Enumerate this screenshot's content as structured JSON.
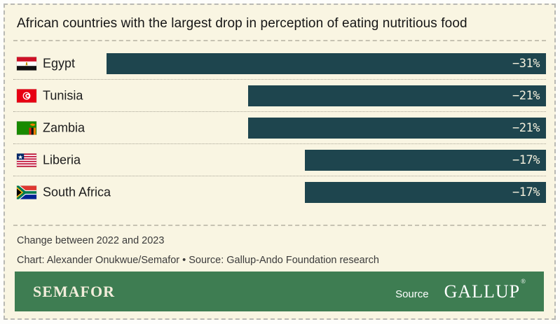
{
  "title": "African countries with the largest drop in perception of eating nutritious food",
  "chart_data": {
    "type": "bar",
    "orientation": "horizontal-right-aligned",
    "title": "African countries with the largest drop in perception of eating nutritious food",
    "categories": [
      "Egypt",
      "Tunisia",
      "Zambia",
      "Liberia",
      "South Africa"
    ],
    "values": [
      -31,
      -21,
      -21,
      -17,
      -17
    ],
    "unit": "%",
    "bar_color": "#1e454e",
    "value_label_color": "#f3efdc",
    "max_abs_value": 31,
    "max_bar_pct": 82.5,
    "grid": false,
    "legend": false,
    "rows": [
      {
        "country": "Egypt",
        "value": -31,
        "label": "−31%",
        "flag": "egypt-flag"
      },
      {
        "country": "Tunisia",
        "value": -21,
        "label": "−21%",
        "flag": "tunisia-flag"
      },
      {
        "country": "Zambia",
        "value": -21,
        "label": "−21%",
        "flag": "zambia-flag"
      },
      {
        "country": "Liberia",
        "value": -17,
        "label": "−17%",
        "flag": "liberia-flag"
      },
      {
        "country": "South Africa",
        "value": -17,
        "label": "−17%",
        "flag": "south-africa-flag"
      }
    ]
  },
  "footer": {
    "note": "Change between 2022 and 2023",
    "credit": "Chart: Alexander Onukwue/Semafor • Source: Gallup-Ando Foundation research"
  },
  "brandbar": {
    "brand": "SEMAFOR",
    "source_label": "Source",
    "source_brand": "GALLUP",
    "background": "#3e7d52"
  },
  "colors": {
    "canvas_background": "#f9f5e2",
    "bar": "#1e454e",
    "brand_green": "#3e7d52",
    "separator_dotted": "#a9a597",
    "separator_dashed": "#c6c2b2",
    "text_primary": "#151515",
    "text_secondary": "#3b3b3b"
  }
}
